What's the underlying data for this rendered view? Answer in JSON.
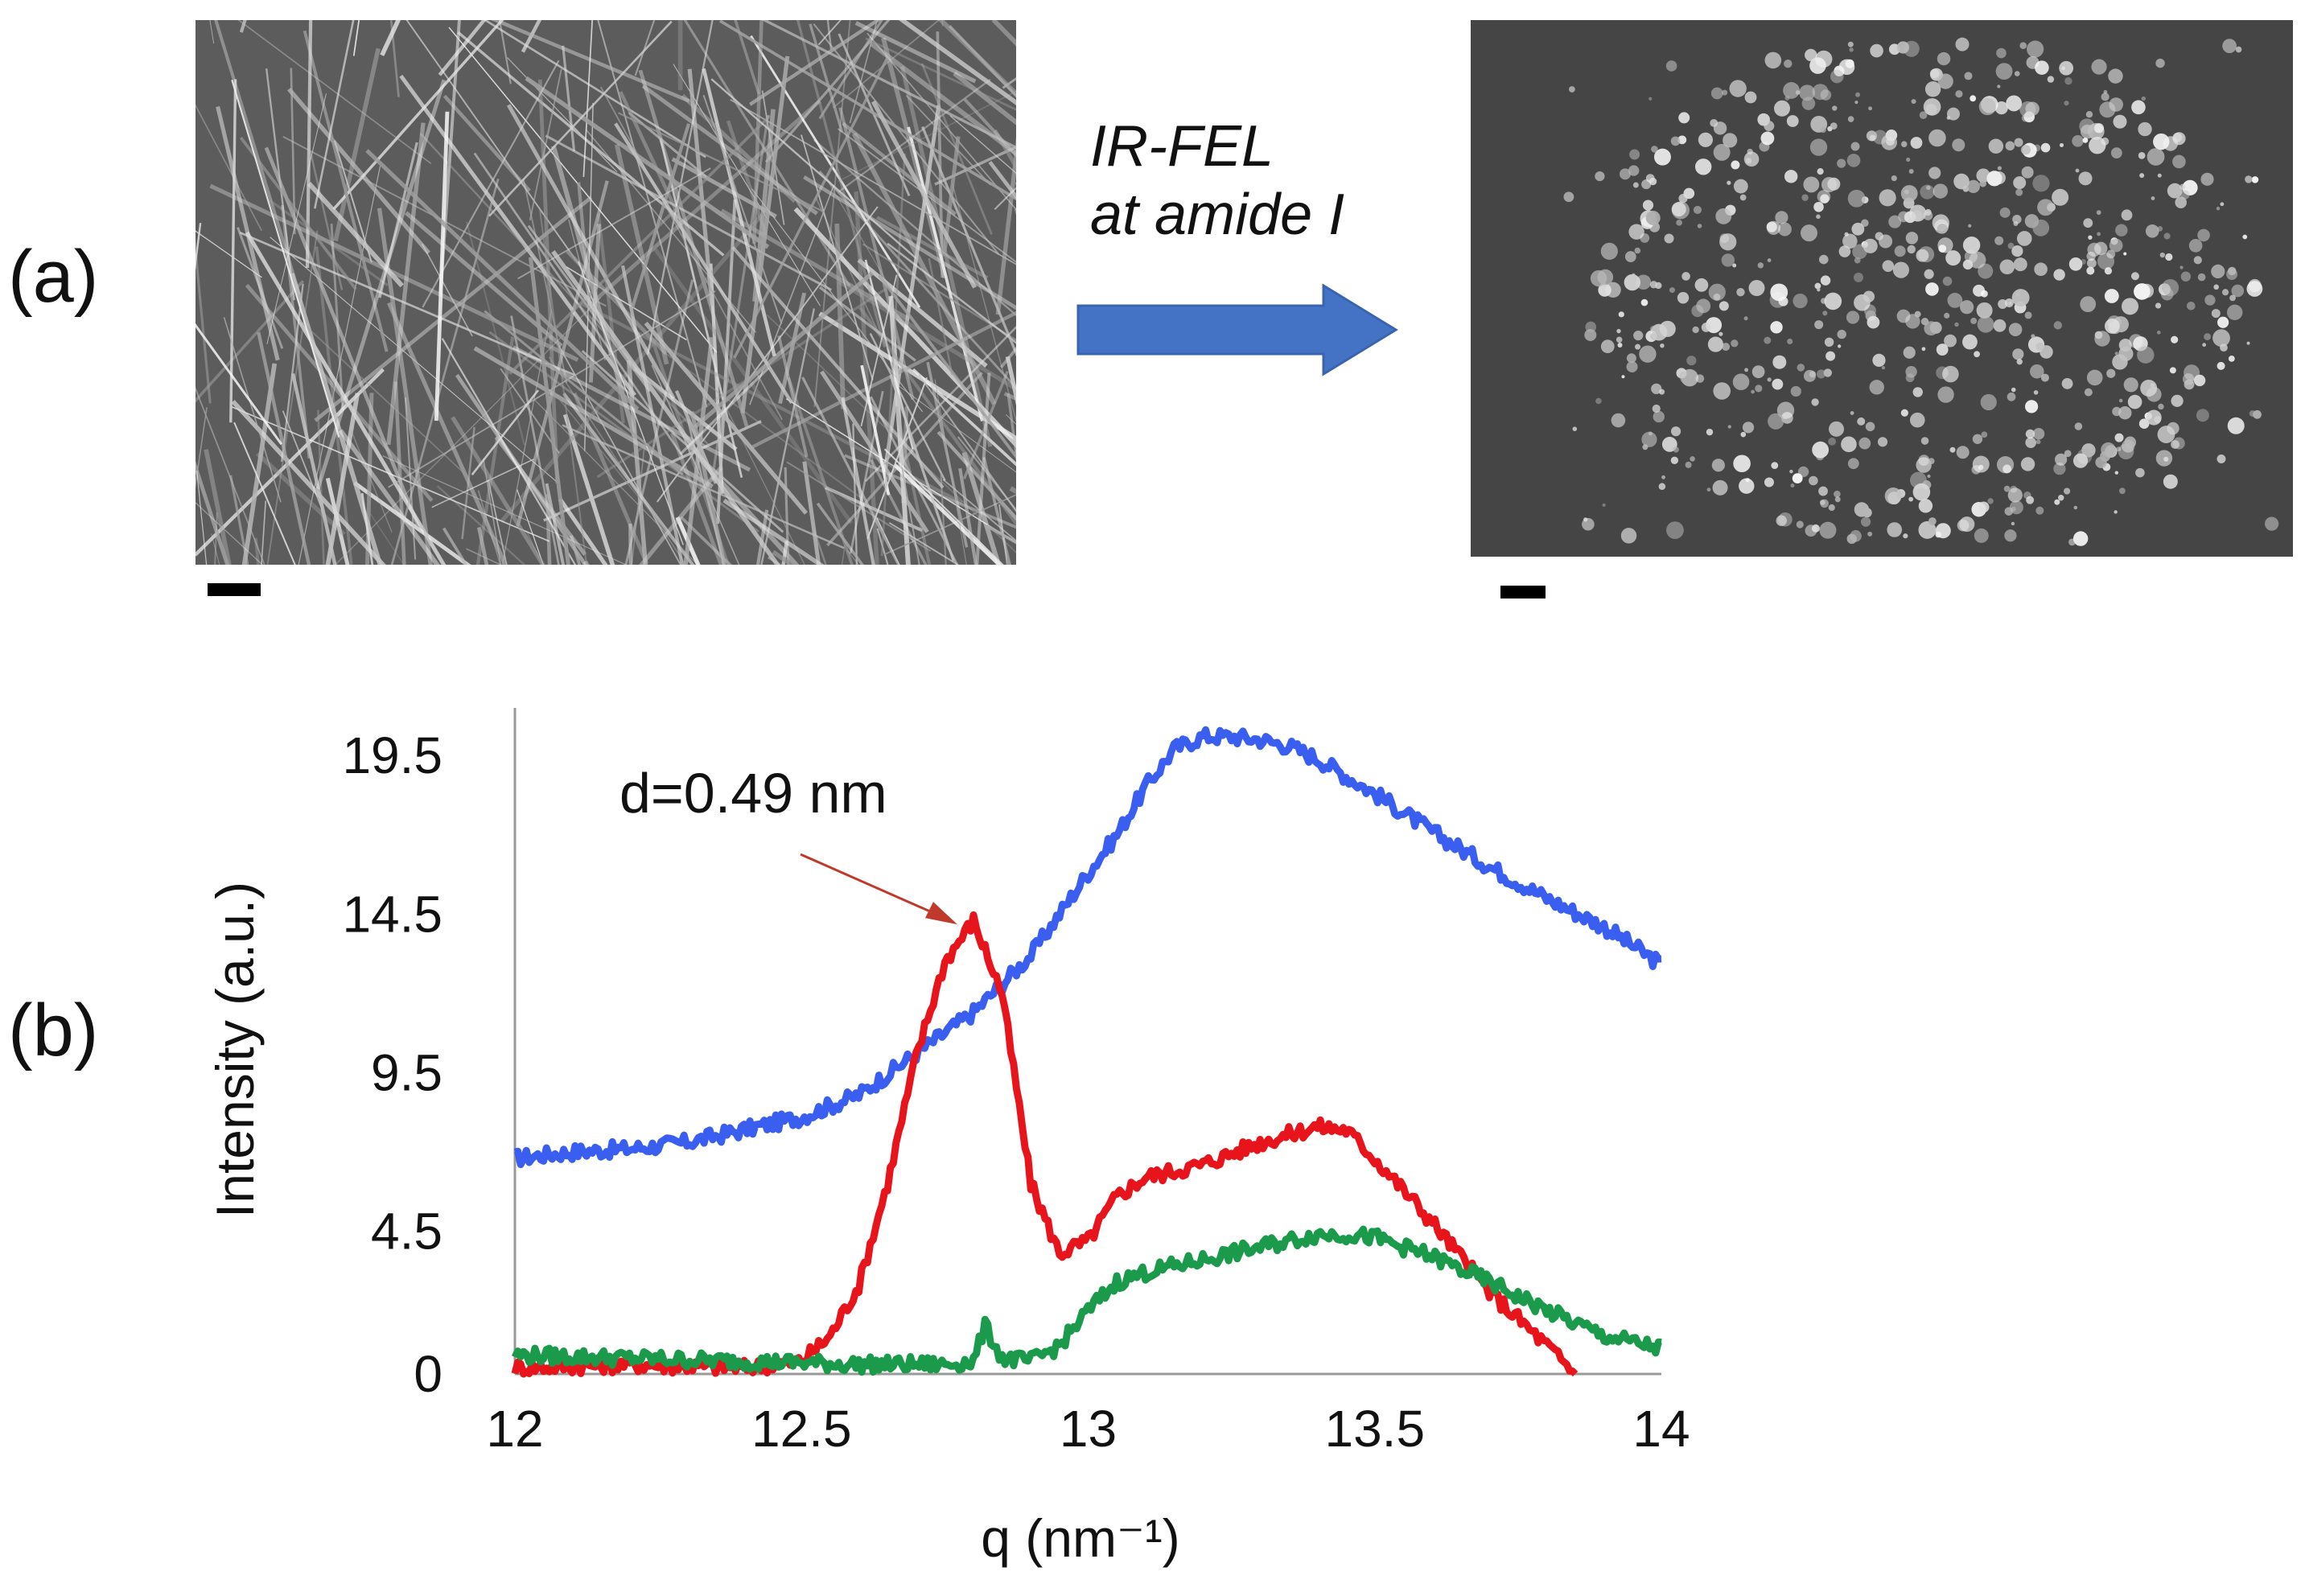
{
  "panels": {
    "a_label": "(a)",
    "b_label": "(b)"
  },
  "arrow": {
    "line1": "IR-FEL",
    "line2": "at amide I",
    "color": "#4472c4"
  },
  "chart_data": {
    "type": "line",
    "xlabel": "q (nm⁻¹)",
    "ylabel": "Intensity (a.u.)",
    "xlim": [
      12,
      14
    ],
    "ylim": [
      0,
      21
    ],
    "xticks": [
      "12",
      "12.5",
      "13",
      "13.5",
      "14"
    ],
    "xtick_values": [
      12,
      12.5,
      13,
      13.5,
      14
    ],
    "yticks": [
      "0",
      "4.5",
      "9.5",
      "14.5",
      "19.5"
    ],
    "ytick_values": [
      0,
      4.5,
      9.5,
      14.5,
      19.5
    ],
    "grid": false,
    "annotation": {
      "text": "d=0.49 nm",
      "points_to": {
        "x": 12.8,
        "y": 14.3
      },
      "color": "#c0392b"
    },
    "series": [
      {
        "color": "#3a5ef0",
        "x": [
          12.0,
          12.1,
          12.2,
          12.3,
          12.4,
          12.5,
          12.6,
          12.7,
          12.8,
          12.9,
          13.0,
          13.05,
          13.1,
          13.15,
          13.2,
          13.25,
          13.3,
          13.35,
          13.4,
          13.5,
          13.6,
          13.7,
          13.8,
          13.9,
          14.0
        ],
        "values": [
          6.8,
          7.0,
          7.1,
          7.3,
          7.7,
          8.1,
          8.8,
          10.1,
          11.4,
          13.2,
          15.8,
          17.0,
          18.5,
          19.7,
          20.1,
          20.1,
          20.0,
          19.8,
          19.4,
          18.3,
          17.1,
          16.0,
          15.0,
          14.1,
          12.9
        ]
      },
      {
        "color": "#e8141c",
        "x": [
          12.0,
          12.2,
          12.4,
          12.5,
          12.55,
          12.6,
          12.65,
          12.7,
          12.75,
          12.8,
          12.85,
          12.9,
          12.95,
          13.0,
          13.05,
          13.1,
          13.2,
          13.3,
          13.4,
          13.45,
          13.5,
          13.6,
          13.7,
          13.8,
          13.85
        ],
        "values": [
          0.2,
          0.3,
          0.2,
          0.4,
          1.2,
          2.8,
          6.0,
          10.0,
          13.0,
          14.3,
          12.0,
          6.0,
          3.8,
          4.2,
          5.6,
          6.2,
          6.6,
          7.3,
          7.8,
          7.7,
          6.8,
          4.8,
          2.6,
          0.9,
          0.0
        ]
      },
      {
        "color": "#1a9a4a",
        "x": [
          12.0,
          12.2,
          12.4,
          12.6,
          12.75,
          12.8,
          12.82,
          12.85,
          12.9,
          12.95,
          13.0,
          13.05,
          13.1,
          13.2,
          13.3,
          13.35,
          13.4,
          13.45,
          13.5,
          13.6,
          13.7,
          13.8,
          13.9,
          14.0
        ],
        "values": [
          0.6,
          0.5,
          0.4,
          0.3,
          0.3,
          0.4,
          1.5,
          0.5,
          0.4,
          0.9,
          2.0,
          2.9,
          3.2,
          3.6,
          4.0,
          4.2,
          4.4,
          4.4,
          4.3,
          3.7,
          2.9,
          2.0,
          1.2,
          0.8
        ]
      }
    ]
  }
}
